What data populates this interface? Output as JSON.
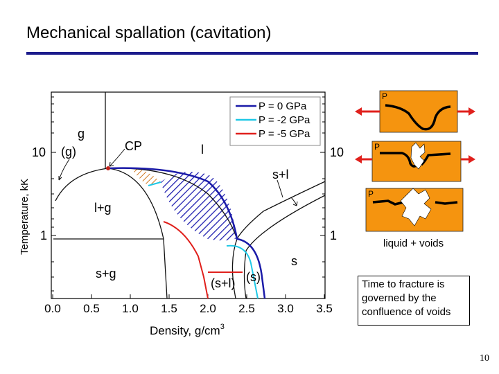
{
  "slide": {
    "title": "Mechanical spallation (cavitation)",
    "page_number": "10"
  },
  "diagram": {
    "x_tick_labels": [
      "0.0",
      "0.5",
      "1.0",
      "1.5",
      "2.0",
      "2.5",
      "3.0",
      "3.5"
    ],
    "left_y_tick_labels": [
      "10",
      "1"
    ],
    "right_y_tick_labels": [
      "10",
      "1"
    ],
    "x_axis_label": "Density, g/cm",
    "x_axis_label_sup": "3",
    "y_axis_label": "Temperature, kK",
    "legend": [
      "P = 0 GPa",
      "P = -2 GPa",
      "P = -5 GPa"
    ],
    "region_labels": {
      "g": "g",
      "g_paren": "(g)",
      "cp": "CP",
      "l": "l",
      "sl": "s+l",
      "lg": "l+g",
      "sg": "s+g",
      "s": "s",
      "sl_paren": "(s+l)",
      "s_paren": "(s)"
    }
  },
  "illustration": {
    "panel_label": "P",
    "caption": "liquid + voids"
  },
  "note": "Time to fracture is governed by the confluence of voids",
  "colors": {
    "p0": "#1a1aa8",
    "p_minus2": "#1ec8e6",
    "p_minus5": "#e0201c",
    "panel": "#f5940f",
    "arrow": "#e0201c",
    "title_rule": "#1c1c8c"
  }
}
